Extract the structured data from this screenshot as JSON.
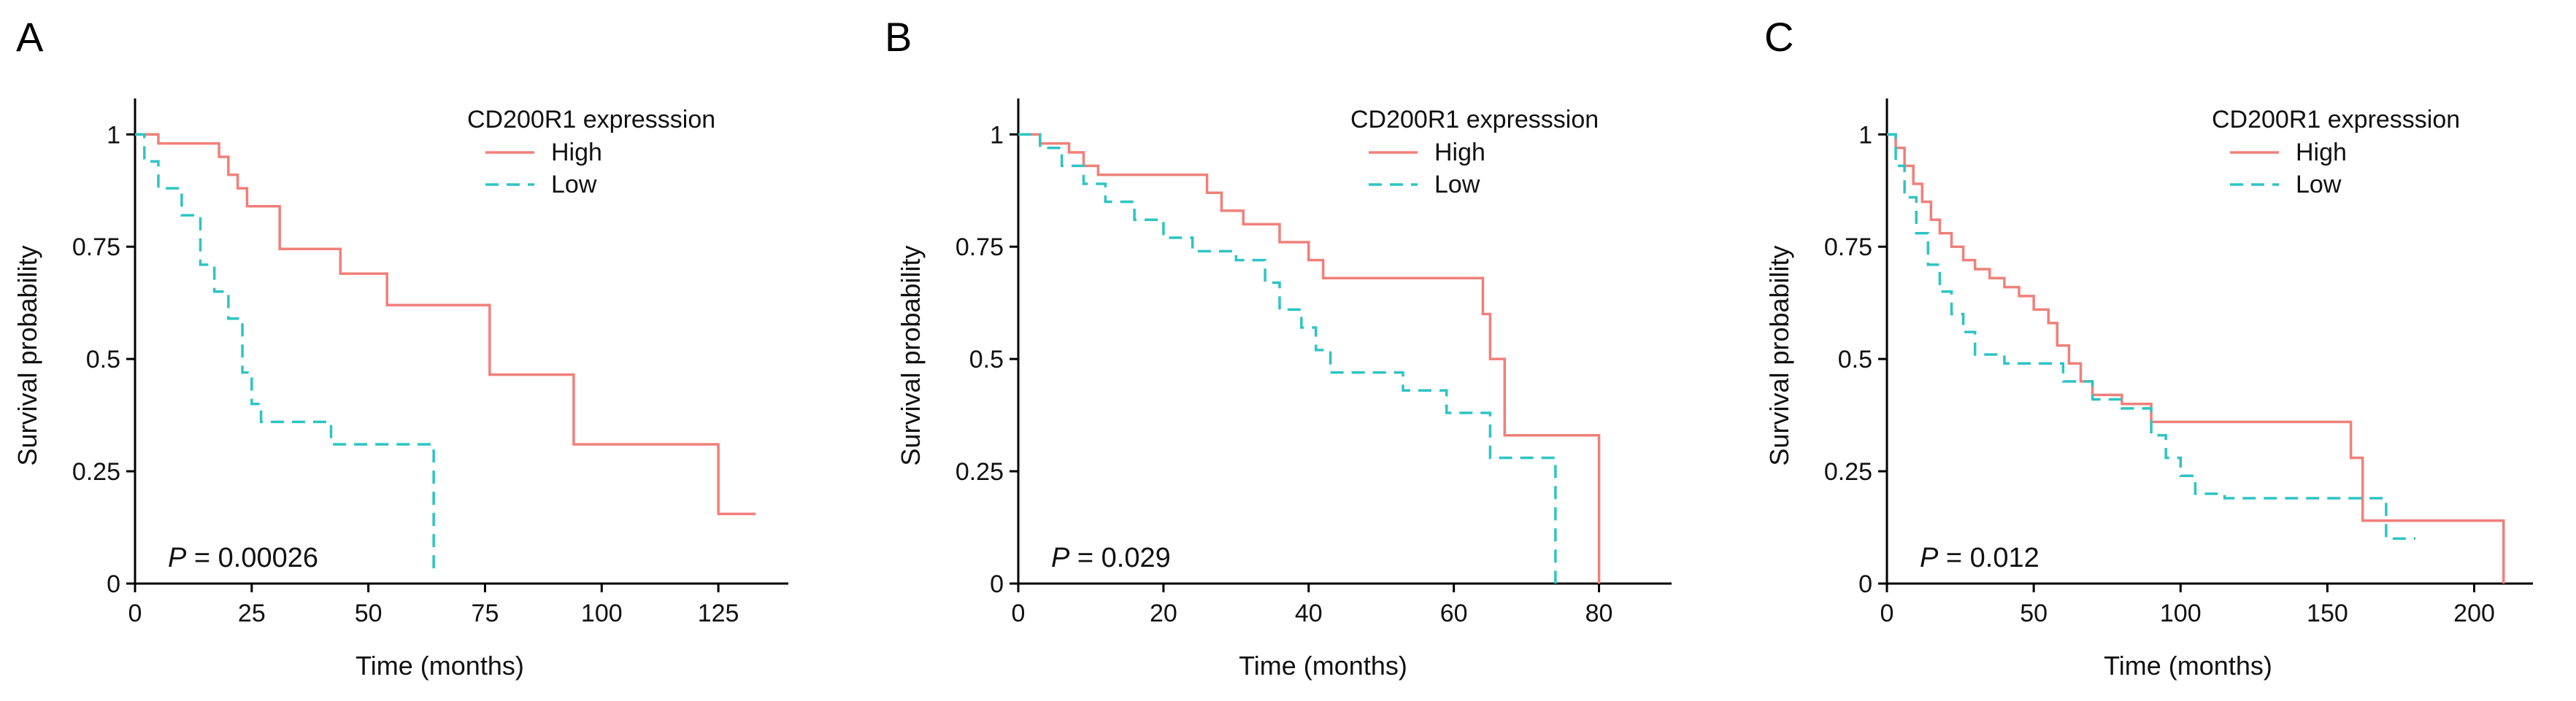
{
  "colors": {
    "high": "#f0807a",
    "low": "#2ec4c4"
  },
  "chart_data": [
    {
      "type": "line",
      "panel_label": "A",
      "xlabel": "Time (months)",
      "ylabel": "Survival probability",
      "xlim": [
        0,
        140
      ],
      "ylim": [
        0,
        1.08
      ],
      "xticks": [
        0,
        25,
        50,
        75,
        100,
        125
      ],
      "xtick_labels": [
        "0",
        "25",
        "50",
        "75",
        "100",
        "125"
      ],
      "yticks": [
        0,
        0.25,
        0.5,
        0.75,
        1
      ],
      "ytick_labels": [
        "0",
        "0.25",
        "0.5",
        "0.75",
        "1"
      ],
      "legend_title": "CD200R1 expresssion",
      "p_label": "P",
      "p_value": " = 0.00026",
      "series": [
        {
          "name": "High",
          "style": "solid",
          "x": [
            0,
            5,
            18,
            20,
            22,
            24,
            31,
            44,
            54,
            76,
            94,
            125,
            133
          ],
          "y": [
            1,
            0.98,
            0.95,
            0.91,
            0.88,
            0.84,
            0.745,
            0.69,
            0.62,
            0.465,
            0.31,
            0.155,
            0.155
          ]
        },
        {
          "name": "Low",
          "style": "dashed",
          "x": [
            0,
            2,
            5,
            10,
            14,
            17,
            20,
            23,
            25,
            27,
            42,
            64,
            64
          ],
          "y": [
            1,
            0.94,
            0.88,
            0.82,
            0.71,
            0.65,
            0.59,
            0.47,
            0.4,
            0.36,
            0.31,
            0.31,
            0.03
          ]
        }
      ]
    },
    {
      "type": "line",
      "panel_label": "B",
      "xlabel": "Time (months)",
      "ylabel": "Survival probability",
      "xlim": [
        0,
        90
      ],
      "ylim": [
        0,
        1.08
      ],
      "xticks": [
        0,
        20,
        40,
        60,
        80
      ],
      "xtick_labels": [
        "0",
        "20",
        "40",
        "60",
        "80"
      ],
      "yticks": [
        0,
        0.25,
        0.5,
        0.75,
        1
      ],
      "ytick_labels": [
        "0",
        "0.25",
        "0.5",
        "0.75",
        "1"
      ],
      "legend_title": "CD200R1 expresssion",
      "p_label": "P",
      "p_value": " = 0.029",
      "series": [
        {
          "name": "High",
          "style": "solid",
          "x": [
            0,
            3,
            7,
            9,
            11,
            23,
            26,
            28,
            31,
            36,
            40,
            42,
            62,
            64,
            65,
            67,
            80,
            80
          ],
          "y": [
            1,
            0.98,
            0.96,
            0.93,
            0.91,
            0.91,
            0.87,
            0.83,
            0.8,
            0.76,
            0.72,
            0.68,
            0.68,
            0.6,
            0.5,
            0.33,
            0.33,
            0
          ]
        },
        {
          "name": "Low",
          "style": "dashed",
          "x": [
            0,
            3,
            6,
            9,
            12,
            16,
            20,
            24,
            30,
            34,
            36,
            39,
            41,
            43,
            53,
            59,
            65,
            74,
            74
          ],
          "y": [
            1,
            0.97,
            0.93,
            0.89,
            0.85,
            0.81,
            0.77,
            0.74,
            0.72,
            0.67,
            0.61,
            0.57,
            0.52,
            0.47,
            0.43,
            0.38,
            0.28,
            0.28,
            0
          ]
        }
      ]
    },
    {
      "type": "line",
      "panel_label": "C",
      "xlabel": "Time (months)",
      "ylabel": "Survival probability",
      "xlim": [
        0,
        220
      ],
      "ylim": [
        0,
        1.08
      ],
      "xticks": [
        0,
        50,
        100,
        150,
        200
      ],
      "xtick_labels": [
        "0",
        "50",
        "100",
        "150",
        "200"
      ],
      "yticks": [
        0,
        0.25,
        0.5,
        0.75,
        1
      ],
      "ytick_labels": [
        "0",
        "0.25",
        "0.5",
        "0.75",
        "1"
      ],
      "legend_title": "CD200R1 expresssion",
      "p_label": "P",
      "p_value": " = 0.012",
      "series": [
        {
          "name": "High",
          "style": "solid",
          "x": [
            0,
            3,
            6,
            9,
            12,
            15,
            18,
            22,
            26,
            30,
            35,
            40,
            45,
            50,
            55,
            58,
            62,
            66,
            70,
            80,
            90,
            155,
            158,
            162,
            210,
            210
          ],
          "y": [
            1,
            0.97,
            0.93,
            0.89,
            0.85,
            0.81,
            0.78,
            0.75,
            0.72,
            0.7,
            0.68,
            0.66,
            0.64,
            0.61,
            0.58,
            0.53,
            0.49,
            0.45,
            0.42,
            0.4,
            0.36,
            0.36,
            0.28,
            0.14,
            0.14,
            0
          ]
        },
        {
          "name": "Low",
          "style": "dashed",
          "x": [
            0,
            3,
            6,
            10,
            14,
            18,
            22,
            26,
            30,
            40,
            60,
            70,
            80,
            90,
            95,
            100,
            105,
            115,
            160,
            170,
            180
          ],
          "y": [
            1,
            0.93,
            0.86,
            0.78,
            0.71,
            0.65,
            0.6,
            0.56,
            0.51,
            0.49,
            0.45,
            0.41,
            0.39,
            0.33,
            0.28,
            0.24,
            0.2,
            0.19,
            0.19,
            0.1,
            0.1
          ]
        }
      ]
    }
  ]
}
